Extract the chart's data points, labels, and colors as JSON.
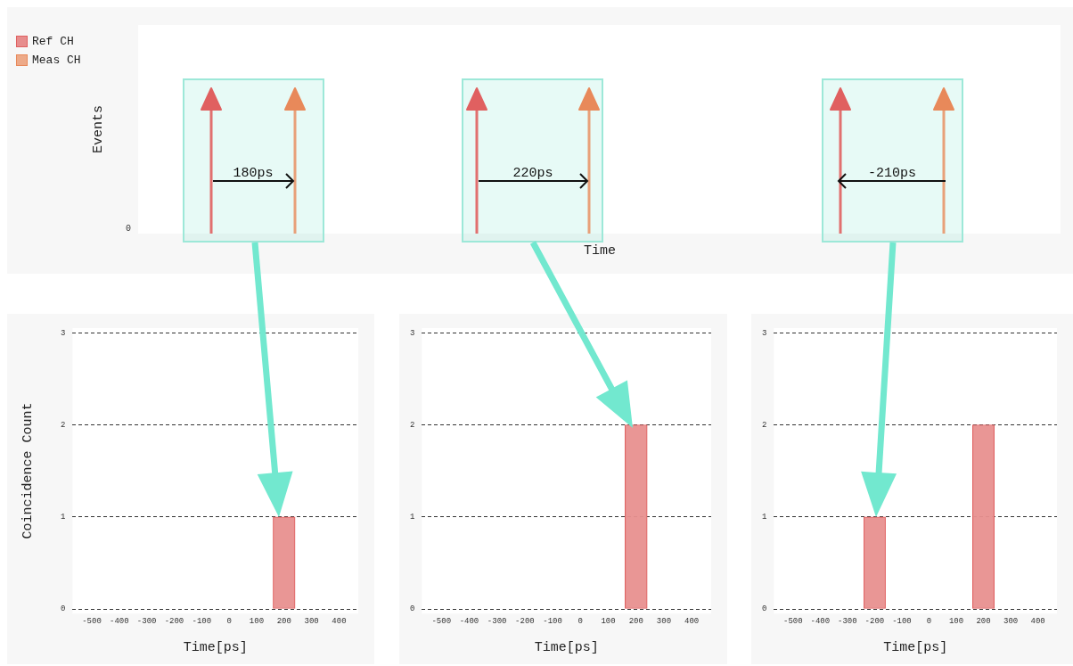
{
  "chart_data": [
    {
      "type": "other",
      "xlabel": "Time",
      "ylabel": "Events",
      "legend": "top left",
      "series": [
        {
          "name": "Ref CH",
          "color": "#e06060"
        },
        {
          "name": "Meas CH",
          "color": "#e8895a"
        }
      ],
      "annotations": [
        "180ps",
        "220ps",
        "-210ps",
        "0"
      ]
    },
    {
      "type": "histogram",
      "xlabel": "Time[ps]",
      "ylabel": "Coincidence Count",
      "bins": [
        -560,
        -480,
        -400,
        -320,
        -240,
        -160,
        -80,
        0,
        80,
        160,
        240,
        320,
        400
      ],
      "values": [
        0,
        0,
        0,
        0,
        0,
        0,
        0,
        0,
        0,
        1,
        0,
        0
      ],
      "color": "#e8908f",
      "xlim": [
        -570,
        470
      ],
      "xticks": [
        -500,
        -400,
        -300,
        -200,
        -100,
        0,
        100,
        200,
        300,
        400
      ],
      "ylim": [
        -0.05,
        3.05
      ],
      "yticks": [
        0,
        1,
        2,
        3
      ],
      "grid": "y"
    },
    {
      "type": "histogram",
      "xlabel": "Time[ps]",
      "bins": [
        -560,
        -480,
        -400,
        -320,
        -240,
        -160,
        -80,
        0,
        80,
        160,
        240,
        320,
        400
      ],
      "values": [
        0,
        0,
        0,
        0,
        0,
        0,
        0,
        0,
        0,
        2,
        0,
        0
      ],
      "color": "#e8908f",
      "xlim": [
        -570,
        470
      ],
      "xticks": [
        -500,
        -400,
        -300,
        -200,
        -100,
        0,
        100,
        200,
        300,
        400
      ],
      "ylim": [
        -0.05,
        3.05
      ],
      "yticks": [
        0,
        1,
        2,
        3
      ],
      "grid": "y"
    },
    {
      "type": "histogram",
      "xlabel": "Time[ps]",
      "bins": [
        -560,
        -480,
        -400,
        -320,
        -240,
        -160,
        -80,
        0,
        80,
        160,
        240,
        320,
        400
      ],
      "values": [
        0,
        0,
        0,
        0,
        1,
        0,
        0,
        0,
        0,
        2,
        0,
        0
      ],
      "color": "#e8908f",
      "xlim": [
        -570,
        470
      ],
      "xticks": [
        -500,
        -400,
        -300,
        -200,
        -100,
        0,
        100,
        200,
        300,
        400
      ],
      "ylim": [
        -0.05,
        3.05
      ],
      "yticks": [
        0,
        1,
        2,
        3
      ],
      "grid": "y"
    }
  ]
}
